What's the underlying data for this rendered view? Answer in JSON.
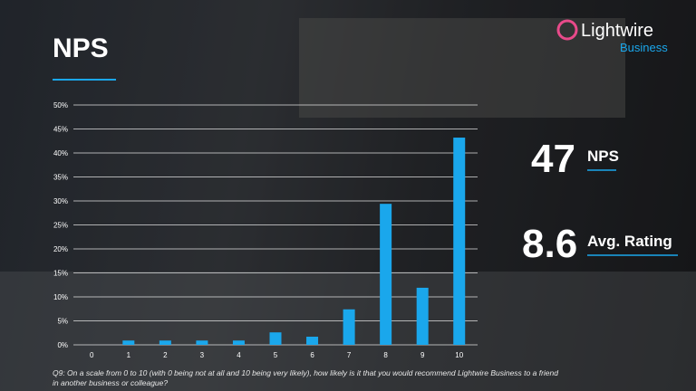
{
  "title": "NPS",
  "logo": {
    "name": "Lightwire",
    "sub": "Business"
  },
  "kpis": [
    {
      "value": 47,
      "label": "NPS"
    },
    {
      "value": 8.6,
      "label": "Avg. Rating"
    }
  ],
  "footnote": "Q9: On a scale from 0 to 10 (with 0 being not at all and 10 being very likely), how likely is it that you would recommend Lightwire Business to a friend in another business or colleague?",
  "chart_data": {
    "type": "bar",
    "categories": [
      "0",
      "1",
      "2",
      "3",
      "4",
      "5",
      "6",
      "7",
      "8",
      "9",
      "10"
    ],
    "values": [
      0,
      0.9,
      0.9,
      0.9,
      0.9,
      2.6,
      1.7,
      7.4,
      29.4,
      11.9,
      43.2
    ],
    "color": "#1aa7ec",
    "ylim": [
      0,
      50
    ],
    "yticks": [
      {
        "value": 0,
        "label": "0%"
      },
      {
        "value": 5,
        "label": "5%"
      },
      {
        "value": 10,
        "label": "10%"
      },
      {
        "value": 15,
        "label": "15%"
      },
      {
        "value": 20,
        "label": "20%"
      },
      {
        "value": 25,
        "label": "25%"
      },
      {
        "value": 30,
        "label": "30%"
      },
      {
        "value": 35,
        "label": "35%"
      },
      {
        "value": 40,
        "label": "40%"
      },
      {
        "value": 45,
        "label": "45%"
      },
      {
        "value": 50,
        "label": "50%"
      }
    ],
    "grid": true
  }
}
